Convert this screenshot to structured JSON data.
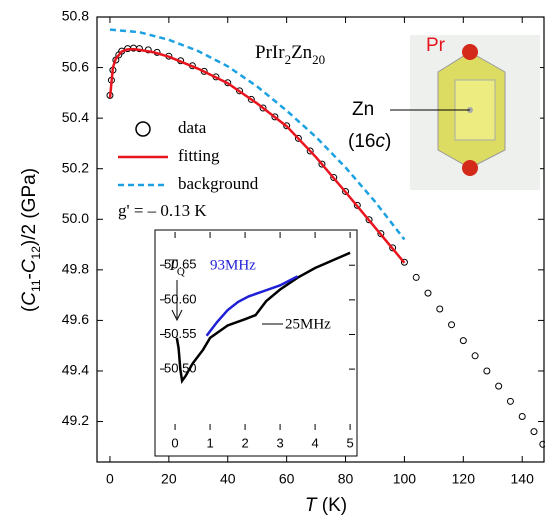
{
  "chart_data": [
    {
      "type": "line",
      "x_label": [
        "T",
        " (K)"
      ],
      "y_label": [
        "(",
        "C",
        "11",
        "-",
        "C",
        "12",
        ")/2 (GPa)"
      ],
      "annotations": {
        "compound": [
          "PrIr",
          "2",
          "Zn",
          "20"
        ],
        "g_factor": "g' = – 0.13 K",
        "pr": "Pr",
        "zn": "Zn",
        "site": [
          "(16",
          "c",
          ")"
        ]
      },
      "xlim": [
        -4.4,
        147.4
      ],
      "xticks": [
        0,
        20,
        40,
        60,
        80,
        100,
        120,
        140
      ],
      "ylim": [
        49.04,
        50.8
      ],
      "yticks": [
        49.2,
        49.4,
        49.6,
        49.8,
        {
          "value": 50,
          "label": "50.0"
        },
        50.2,
        50.4,
        50.6,
        50.8
      ],
      "series": [
        {
          "name": "data",
          "color": "#000000",
          "style": "markers",
          "x": [
            0,
            0.5,
            1,
            2,
            3,
            4,
            6,
            8,
            10,
            13,
            16,
            20,
            24,
            28,
            32,
            36,
            40,
            44,
            48,
            52,
            56,
            60,
            64,
            68,
            72,
            76,
            80,
            84,
            88,
            92,
            96,
            100,
            104,
            108,
            112,
            116,
            120,
            124,
            128,
            132,
            136,
            140,
            144,
            147
          ],
          "values": [
            50.49,
            50.55,
            50.59,
            50.63,
            50.65,
            50.665,
            50.675,
            50.677,
            50.675,
            50.67,
            50.66,
            50.645,
            50.627,
            50.607,
            50.585,
            50.563,
            50.54,
            50.508,
            50.474,
            50.44,
            50.405,
            50.37,
            50.32,
            50.27,
            50.218,
            50.165,
            50.11,
            50.055,
            49.998,
            49.943,
            49.887,
            49.83,
            49.77,
            49.708,
            49.645,
            49.583,
            49.52,
            49.46,
            49.4,
            49.34,
            49.28,
            49.22,
            49.16,
            49.11
          ]
        },
        {
          "name": "fitting",
          "color": "#e8141e",
          "style": "solid",
          "x": [
            0,
            1,
            2,
            4,
            6,
            8,
            10,
            15,
            20,
            30,
            40,
            50,
            60,
            70,
            80,
            90,
            100
          ],
          "values": [
            50.48,
            50.6,
            50.635,
            50.663,
            50.672,
            50.673,
            50.67,
            50.66,
            50.643,
            50.595,
            50.538,
            50.458,
            50.368,
            50.245,
            50.108,
            49.968,
            49.828
          ]
        },
        {
          "name": "background",
          "color": "#1ba1e2",
          "style": "dashed",
          "x": [
            0,
            10,
            20,
            30,
            40,
            50,
            60,
            70,
            80,
            90,
            100
          ],
          "values": [
            50.75,
            50.74,
            50.71,
            50.665,
            50.605,
            50.525,
            50.43,
            50.325,
            50.205,
            50.07,
            49.92
          ]
        }
      ]
    },
    {
      "type": "line",
      "annotations": {
        "tq": [
          "T",
          "Q"
        ]
      },
      "xlim": [
        -0.43,
        5.14
      ],
      "xticks": [
        0,
        1,
        2,
        3,
        4,
        5
      ],
      "ylim": [
        50.412,
        50.698
      ],
      "yticks": [
        {
          "value": 50.5,
          "label": "50.50"
        },
        50.55,
        {
          "value": 50.6,
          "label": "50.60"
        },
        50.65
      ],
      "series": [
        {
          "name": "25MHz",
          "color": "#000000",
          "style": "solid",
          "x": [
            0.05,
            0.1,
            0.15,
            0.2,
            0.3,
            0.5,
            0.8,
            1,
            1.5,
            2,
            2.3,
            2.6,
            3,
            3.5,
            4,
            4.5,
            5
          ],
          "values": [
            50.545,
            50.53,
            50.5,
            50.483,
            50.49,
            50.508,
            50.528,
            50.545,
            50.563,
            50.572,
            50.578,
            50.598,
            50.615,
            50.632,
            50.646,
            50.657,
            50.668
          ]
        },
        {
          "name": "93MHz",
          "color": "#1f1fd6",
          "style": "solid",
          "x": [
            0.9,
            1.2,
            1.5,
            1.8,
            2.1,
            2.5,
            3,
            3.5
          ],
          "values": [
            50.548,
            50.568,
            50.585,
            50.597,
            50.605,
            50.612,
            50.621,
            50.634
          ]
        }
      ]
    }
  ]
}
